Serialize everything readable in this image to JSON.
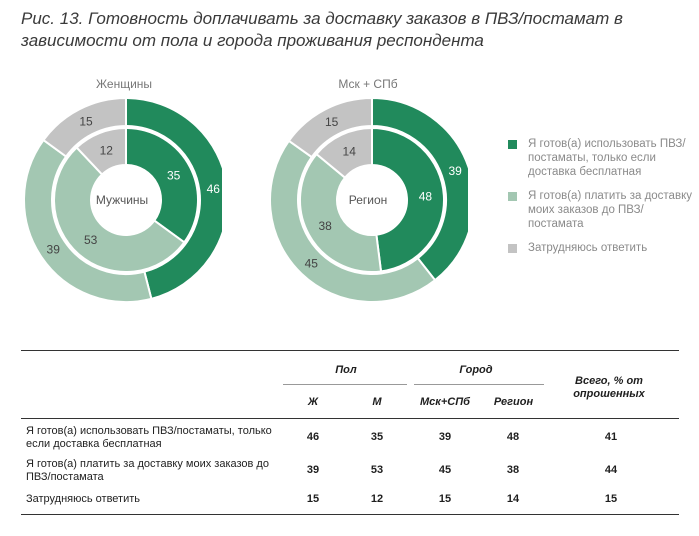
{
  "title": "Рис. 13. Готовность доплачивать за доставку заказов в ПВЗ/постамат в зависимости от пола и города проживания респондента",
  "colors": {
    "ready_free": "#218a5c",
    "pay": "#a3c7b2",
    "unsure": "#c3c3c3"
  },
  "legend": [
    {
      "label": "Я готов(а) использовать ПВЗ/постаматы, только если доставка бесплатная",
      "color": "#218a5c"
    },
    {
      "label": "Я готов(а) платить за доставку моих заказов до ПВЗ/постамата",
      "color": "#a3c7b2"
    },
    {
      "label": "Затрудняюсь ответить",
      "color": "#c3c3c3"
    }
  ],
  "chart_data": [
    {
      "type": "pie",
      "outer_label": "Женщины",
      "center_label": "Мужчины",
      "categories": [
        "Я готов(а) использовать ПВЗ/постаматы, только если доставка бесплатная",
        "Я готов(а) платить за доставку моих заказов до ПВЗ/постамата",
        "Затрудняюсь ответить"
      ],
      "series": [
        {
          "name": "Женщины",
          "ring": "outer",
          "values": [
            46,
            39,
            15
          ]
        },
        {
          "name": "Мужчины",
          "ring": "inner",
          "values": [
            35,
            53,
            12
          ]
        }
      ]
    },
    {
      "type": "pie",
      "outer_label": "Мск + СПб",
      "center_label": "Регион",
      "categories": [
        "Я готов(а) использовать ПВЗ/постаматы, только если доставка бесплатная",
        "Я готов(а) платить за доставку моих заказов до ПВЗ/постамата",
        "Затрудняюсь ответить"
      ],
      "series": [
        {
          "name": "Мск + СПб",
          "ring": "outer",
          "values": [
            39,
            45,
            15
          ]
        },
        {
          "name": "Регион",
          "ring": "inner",
          "values": [
            48,
            38,
            14
          ]
        }
      ]
    }
  ],
  "table": {
    "group_headers": {
      "gender": "Пол",
      "city": "Город",
      "total": "Всего, % от опрошенных"
    },
    "col_headers": [
      "Ж",
      "М",
      "Мск+СПб",
      "Регион"
    ],
    "rows": [
      {
        "label": "Я готов(а) использовать ПВЗ/постаматы, только если доставка бесплатная",
        "values": [
          "46",
          "35",
          "39",
          "48",
          "41"
        ]
      },
      {
        "label": "Я готов(а) платить за доставку моих заказов до ПВЗ/постамата",
        "values": [
          "39",
          "53",
          "45",
          "38",
          "44"
        ]
      },
      {
        "label": "Затрудняюсь ответить",
        "values": [
          "15",
          "12",
          "15",
          "14",
          "15"
        ]
      }
    ]
  }
}
